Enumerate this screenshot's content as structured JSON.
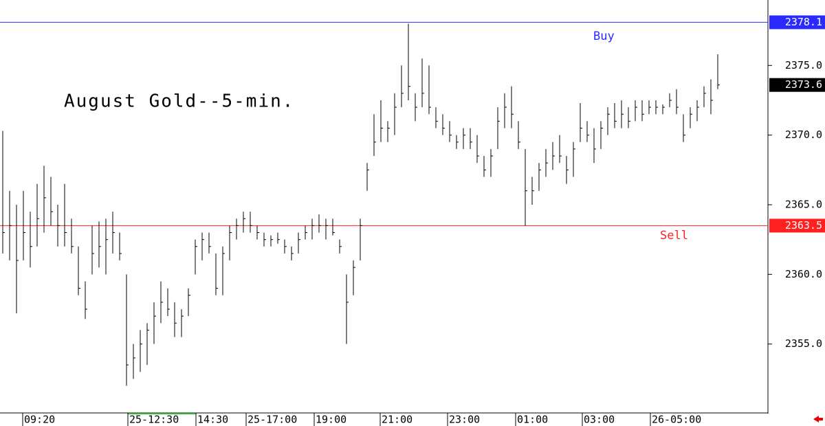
{
  "chart_data": {
    "type": "ohlc",
    "title": "August Gold--5-min.",
    "ylim": [
      2350.1,
      2379.7
    ],
    "yticks": [
      {
        "value": 2355,
        "label": "2355.0"
      },
      {
        "value": 2360,
        "label": "2360.0"
      },
      {
        "value": 2365,
        "label": "2365.0"
      },
      {
        "value": 2370,
        "label": "2370.0"
      },
      {
        "value": 2375,
        "label": "2375.0"
      }
    ],
    "xlim": [
      -0.4,
      111.3
    ],
    "xticks": [
      {
        "value": 2.9,
        "label": "09:20"
      },
      {
        "value": 18.2,
        "label": "25-12:30"
      },
      {
        "value": 28.1,
        "label": "14:30"
      },
      {
        "value": 35.4,
        "label": "25-17:00"
      },
      {
        "value": 45.3,
        "label": "19:00"
      },
      {
        "value": 54.9,
        "label": "21:00"
      },
      {
        "value": 64.7,
        "label": "23:00"
      },
      {
        "value": 74.6,
        "label": "01:00"
      },
      {
        "value": 84.3,
        "label": "03:00"
      },
      {
        "value": 94.2,
        "label": "26-05:00"
      }
    ],
    "color": "#000000",
    "levels": [
      {
        "name": "Buy",
        "value": 2378.1,
        "color": "#2a2aff"
      },
      {
        "name": "Sell",
        "value": 2363.5,
        "color": "#ff2020"
      }
    ],
    "high": [
      2370.3,
      2366,
      2365,
      2366,
      2364.5,
      2366.5,
      2367.8,
      2367,
      2365,
      2366.5,
      2364,
      2362,
      2359.5,
      2363.5,
      2363.8,
      2364,
      2364.5,
      2363,
      2360,
      2355,
      2356,
      2356.5,
      2358,
      2359.5,
      2359,
      2358,
      2357.5,
      2359,
      2362.5,
      2363,
      2363,
      2361.5,
      2362,
      2363.5,
      2364,
      2364.5,
      2364.5,
      2363.5,
      2363,
      2362.8,
      2363,
      2362.5,
      2362,
      2363,
      2363.5,
      2364,
      2364.3,
      2364,
      2364,
      2362.5,
      2360,
      2361,
      2364,
      2368,
      2371.5,
      2372.5,
      2371,
      2373,
      2375,
      2378,
      2373,
      2375.5,
      2375,
      2372,
      2371.5,
      2371,
      2370,
      2370.5,
      2370.5,
      2370,
      2368.5,
      2369,
      2372,
      2373,
      2373.5,
      2371,
      2369,
      2367,
      2368,
      2369,
      2369.5,
      2370,
      2368.5,
      2369.5,
      2372.3,
      2371,
      2370.5,
      2371,
      2372,
      2372.3,
      2372.5,
      2372,
      2372.5,
      2372.5,
      2372.5,
      2372.5,
      2372.2,
      2373,
      2373.3,
      2371.5,
      2372,
      2372.5,
      2373.5,
      2374,
      2375.8
    ],
    "low": [
      2361.5,
      2361,
      2357.2,
      2361,
      2360.5,
      2362,
      2363,
      2363.5,
      2362,
      2362,
      2361.5,
      2358.5,
      2356.8,
      2360,
      2360.5,
      2360,
      2361.5,
      2361,
      2352,
      2352.5,
      2353,
      2353.5,
      2355,
      2356.5,
      2357,
      2355.5,
      2355.5,
      2357,
      2360,
      2361,
      2361.5,
      2358.5,
      2358.5,
      2361,
      2362.5,
      2363,
      2363,
      2362.5,
      2362,
      2362,
      2362.2,
      2361.5,
      2361,
      2361.5,
      2362.5,
      2362.5,
      2363,
      2362.5,
      2362.8,
      2361.5,
      2355,
      2358.5,
      2361,
      2366,
      2368.5,
      2369.5,
      2369.5,
      2370,
      2372,
      2372.5,
      2371,
      2372,
      2371.5,
      2370.5,
      2370,
      2369.5,
      2369,
      2369,
      2369,
      2368,
      2367,
      2367,
      2369,
      2370.5,
      2370.5,
      2369,
      2363.5,
      2365,
      2366,
      2367,
      2367.5,
      2368,
      2366.5,
      2367,
      2369.5,
      2369.5,
      2368,
      2369,
      2370,
      2370.5,
      2370.5,
      2370.5,
      2371,
      2371,
      2371.5,
      2371.5,
      2371.5,
      2372,
      2371.5,
      2369.5,
      2370.5,
      2371,
      2372,
      2371.5,
      2373.3
    ],
    "close": [
      2363,
      2363.5,
      2361,
      2363,
      2362,
      2364,
      2365.5,
      2364.5,
      2363.5,
      2363,
      2362,
      2359,
      2357.5,
      2361.5,
      2362,
      2362.5,
      2363,
      2361.5,
      2353.5,
      2354,
      2355,
      2356,
      2357,
      2358,
      2357.5,
      2356.5,
      2357,
      2358.5,
      2362,
      2362.5,
      2362,
      2359,
      2361.5,
      2363,
      2363.5,
      2364,
      2363.5,
      2363,
      2362.5,
      2362.5,
      2362.5,
      2362,
      2361.5,
      2362.5,
      2363,
      2363.5,
      2363.5,
      2363.5,
      2363,
      2362,
      2358,
      2360.5,
      2363.5,
      2367.5,
      2369.5,
      2370.5,
      2370.5,
      2372,
      2373,
      2373.5,
      2372,
      2373,
      2372,
      2371,
      2370.5,
      2370,
      2369.5,
      2370,
      2369.5,
      2368.5,
      2367.5,
      2368.5,
      2371,
      2372,
      2371.5,
      2369.5,
      2366,
      2366,
      2367.5,
      2368,
      2368.5,
      2368.5,
      2367.5,
      2369,
      2370.5,
      2370,
      2369,
      2370.5,
      2371.5,
      2371,
      2371.5,
      2371,
      2372,
      2371.5,
      2372,
      2372,
      2372,
      2372.5,
      2372,
      2370,
      2371.5,
      2372,
      2373,
      2372.5,
      2373.6
    ]
  }
}
